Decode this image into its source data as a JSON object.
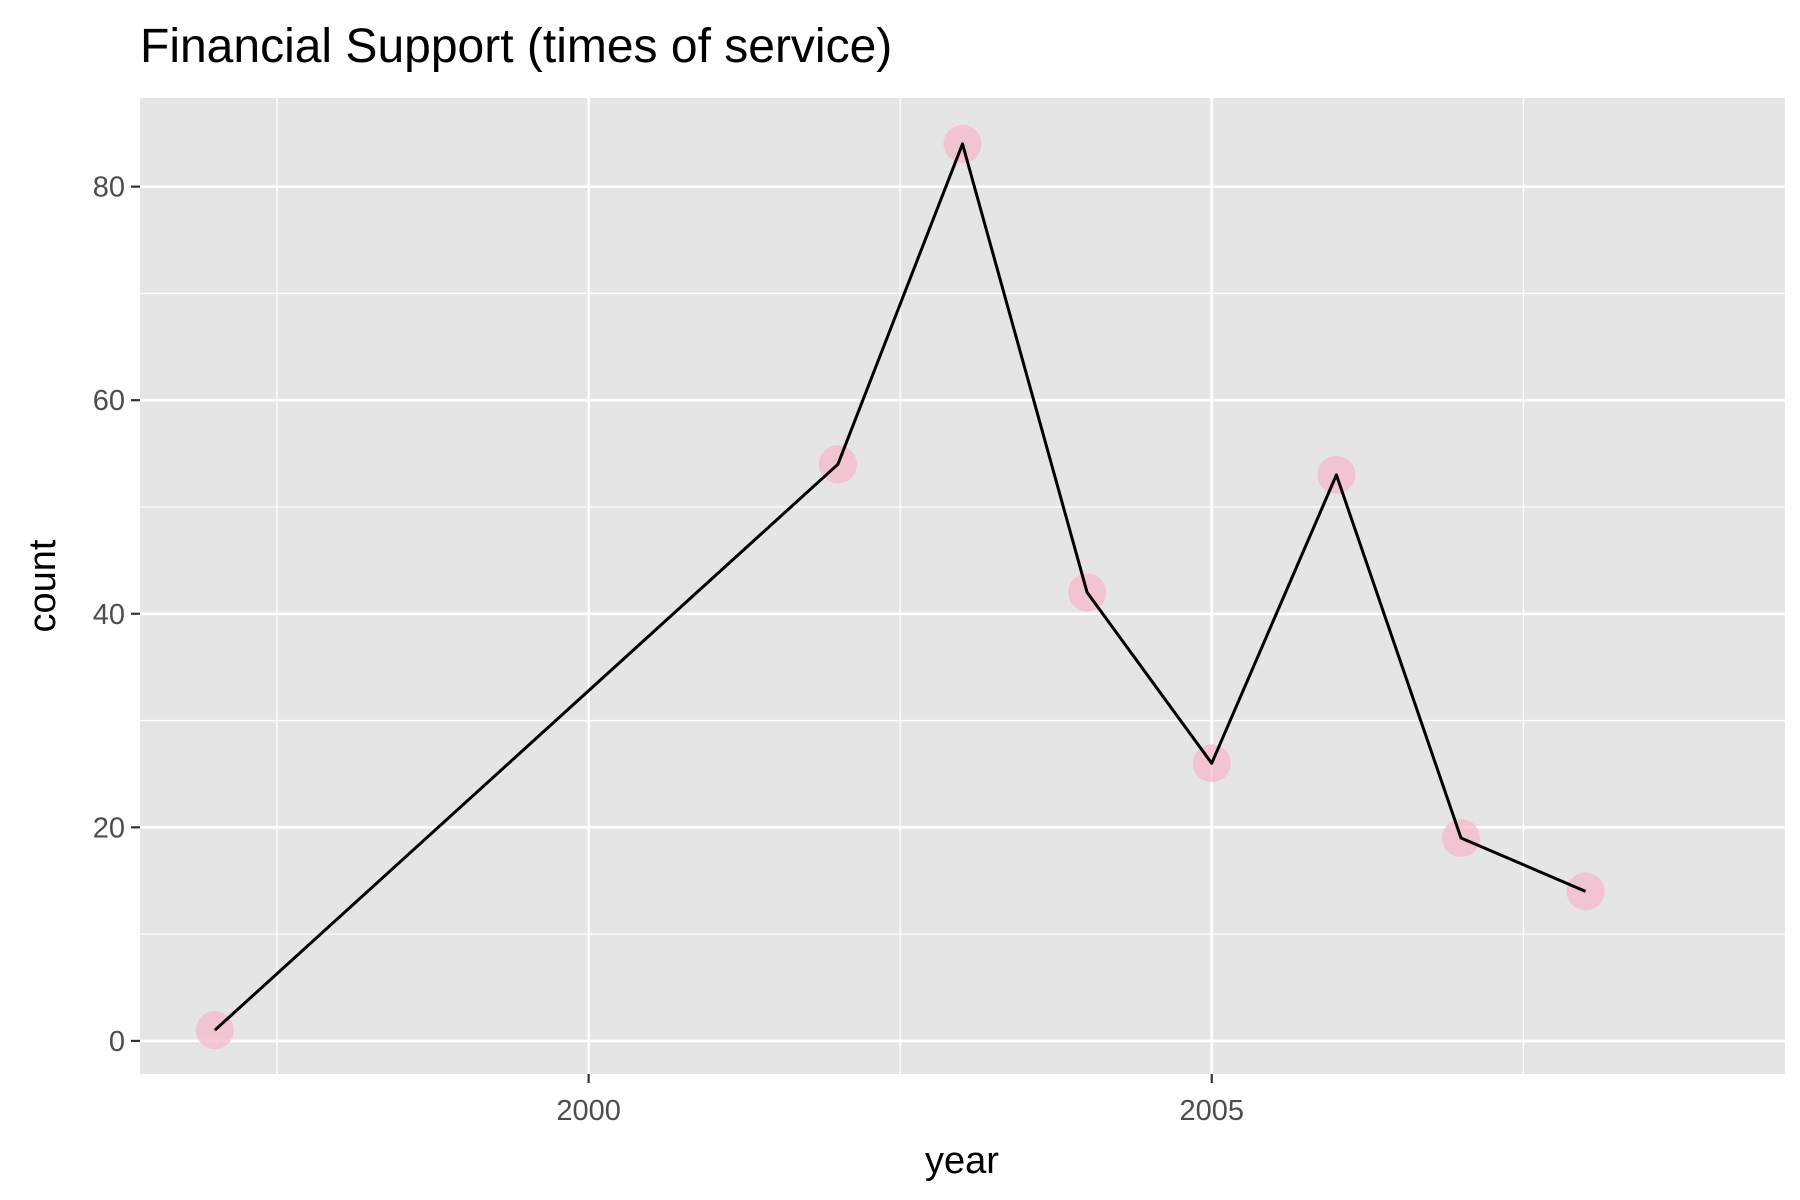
{
  "chart_data": {
    "type": "line",
    "title": "Financial Support (times of service)",
    "xlabel": "year",
    "ylabel": "count",
    "x": [
      1997,
      2002,
      2003,
      2004,
      2005,
      2006,
      2007,
      2008
    ],
    "series": [
      {
        "values": [
          1,
          54,
          84,
          42,
          26,
          53,
          19,
          14
        ]
      }
    ],
    "xlim": [
      1996.4,
      2009.6
    ],
    "ylim": [
      -3.1,
      88.3
    ],
    "x_ticks": [
      2000,
      2005
    ],
    "x_tick_labels": [
      "2000",
      "2005"
    ],
    "x_minor_ticks": [
      1997.5,
      2002.5,
      2007.5
    ],
    "y_ticks": [
      0,
      20,
      40,
      60,
      80
    ],
    "y_tick_labels": [
      "0",
      "20",
      "40",
      "60",
      "80"
    ],
    "y_minor_ticks": [
      10,
      30,
      50,
      70
    ],
    "grid": true,
    "legend": "none",
    "colors": {
      "panel": "#e5e5e5",
      "grid": "#ffffff",
      "line": "#000000",
      "point": "#f7b6c8"
    }
  }
}
